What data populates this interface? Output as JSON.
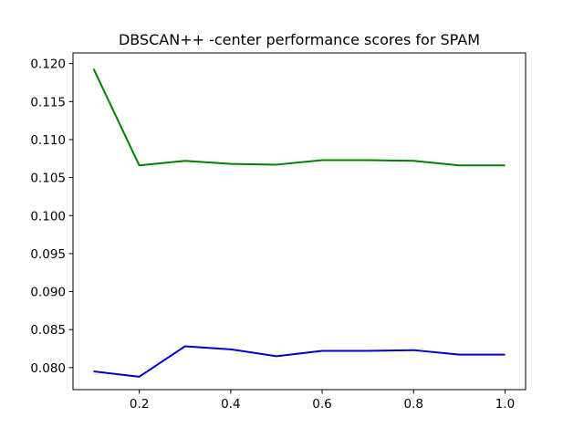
{
  "chart_data": {
    "type": "line",
    "title": "DBSCAN++ -center performance scores for SPAM",
    "xlabel": "",
    "ylabel": "",
    "x": [
      0.1,
      0.2,
      0.3,
      0.4,
      0.5,
      0.6,
      0.7,
      0.8,
      0.9,
      1.0
    ],
    "series": [
      {
        "color": "#008000",
        "values": [
          0.1193,
          0.1066,
          0.1072,
          0.1068,
          0.1067,
          0.1073,
          0.1073,
          0.1072,
          0.1066,
          0.1066
        ]
      },
      {
        "color": "#0000cc",
        "values": [
          0.0795,
          0.0788,
          0.0828,
          0.0824,
          0.0815,
          0.0822,
          0.0822,
          0.0823,
          0.0817,
          0.0817
        ]
      }
    ],
    "xlim": [
      0.055,
      1.045
    ],
    "ylim": [
      0.0771,
      0.1214
    ],
    "x_ticks": [
      {
        "value": 0.2,
        "label": "0.2"
      },
      {
        "value": 0.4,
        "label": "0.4"
      },
      {
        "value": 0.6,
        "label": "0.6"
      },
      {
        "value": 0.8,
        "label": "0.8"
      },
      {
        "value": 1.0,
        "label": "1.0"
      }
    ],
    "y_ticks": [
      {
        "value": 0.08,
        "label": "0.080"
      },
      {
        "value": 0.085,
        "label": "0.085"
      },
      {
        "value": 0.09,
        "label": "0.090"
      },
      {
        "value": 0.095,
        "label": "0.095"
      },
      {
        "value": 0.1,
        "label": "0.100"
      },
      {
        "value": 0.105,
        "label": "0.105"
      },
      {
        "value": 0.11,
        "label": "0.110"
      },
      {
        "value": 0.115,
        "label": "0.115"
      },
      {
        "value": 0.12,
        "label": "0.120"
      }
    ],
    "grid": false,
    "legend": "none"
  }
}
